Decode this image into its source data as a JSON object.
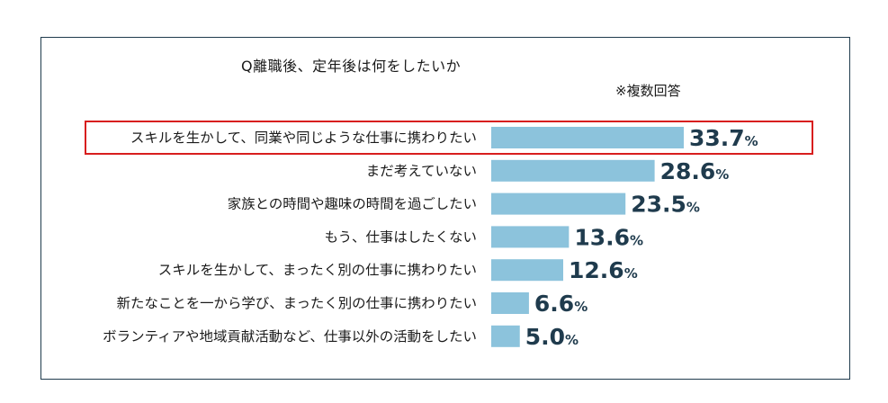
{
  "chart_data": {
    "type": "bar",
    "orientation": "horizontal",
    "title": "Q離職後、定年後は何をしたいか",
    "note": "※複数回答",
    "unit": "%",
    "highlighted_index": 0,
    "categories": [
      "スキルを生かして、同業や同じような仕事に携わりたい",
      "まだ考えていない",
      "家族との時間や趣味の時間を過ごしたい",
      "もう、仕事はしたくない",
      "スキルを生かして、まったく別の仕事に携わりたい",
      "新たなことを一から学び、まったく別の仕事に携わりたい",
      "ボランティアや地域貢献活動など、仕事以外の活動をしたい"
    ],
    "values": [
      33.7,
      28.6,
      23.5,
      13.6,
      12.6,
      6.6,
      5.0
    ],
    "value_labels": [
      "33.7",
      "28.6",
      "23.5",
      "13.6",
      "12.6",
      "6.6",
      "5.0"
    ],
    "colors": {
      "bar": "#8cc3dc",
      "value_text": "#1f3b4d",
      "highlight": "#d81e1e"
    }
  }
}
